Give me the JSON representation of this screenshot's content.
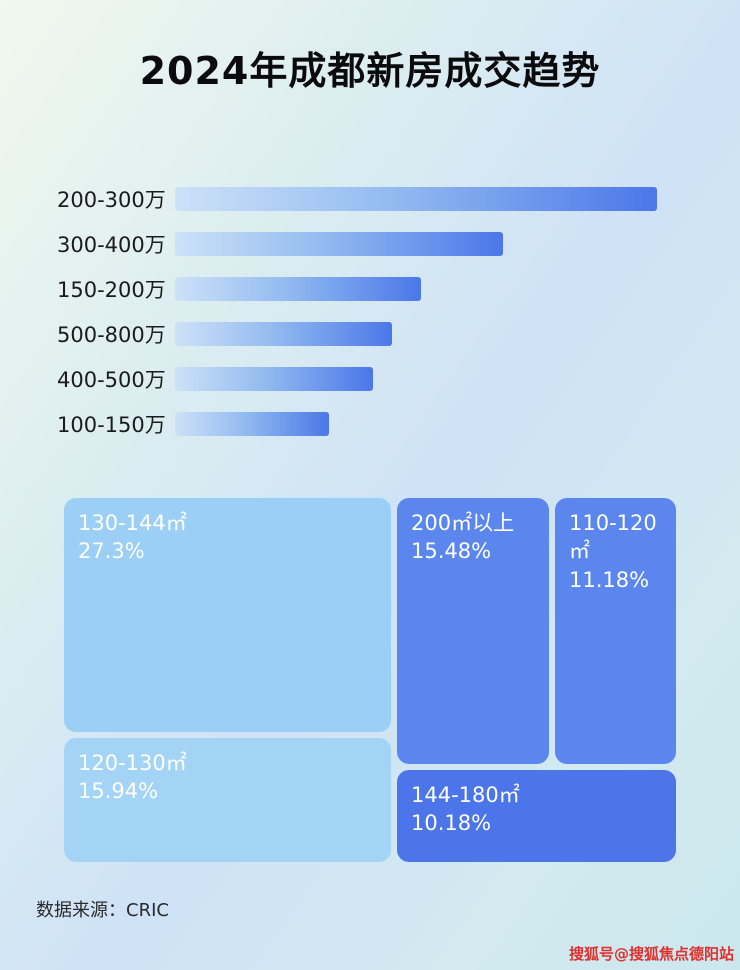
{
  "title": "2024年成都新房成交趋势",
  "source": "数据来源：CRIC",
  "watermark": "搜狐号@搜狐焦点德阳站",
  "chart_data": [
    {
      "type": "bar",
      "orientation": "horizontal",
      "title": "2024年成都新房成交趋势（价格段）",
      "categories": [
        "200-300万",
        "300-400万",
        "150-200万",
        "500-800万",
        "400-500万",
        "100-150万"
      ],
      "values": [
        100,
        68,
        51,
        45,
        41,
        32
      ],
      "value_note": "relative bar lengths as % of longest bar; no numeric axis shown in image",
      "xlabel": "",
      "ylabel": "",
      "grid": false,
      "legend": false,
      "bar_gradient": [
        "#cde1f8",
        "#4b77e9"
      ]
    },
    {
      "type": "treemap",
      "title": "面积段成交占比",
      "items": [
        {
          "label": "130-144㎡",
          "value": 27.3,
          "display": "27.3%",
          "color": "#9bcff5"
        },
        {
          "label": "120-130㎡",
          "value": 15.94,
          "display": "15.94%",
          "color": "#a3d4f5"
        },
        {
          "label": "200㎡以上",
          "value": 15.48,
          "display": "15.48%",
          "color": "#5b86ee"
        },
        {
          "label": "110-120㎡",
          "value": 11.18,
          "display": "11.18%",
          "color": "#5b86ee"
        },
        {
          "label": "144-180㎡",
          "value": 10.18,
          "display": "10.18%",
          "color": "#4b75e8"
        }
      ]
    }
  ]
}
